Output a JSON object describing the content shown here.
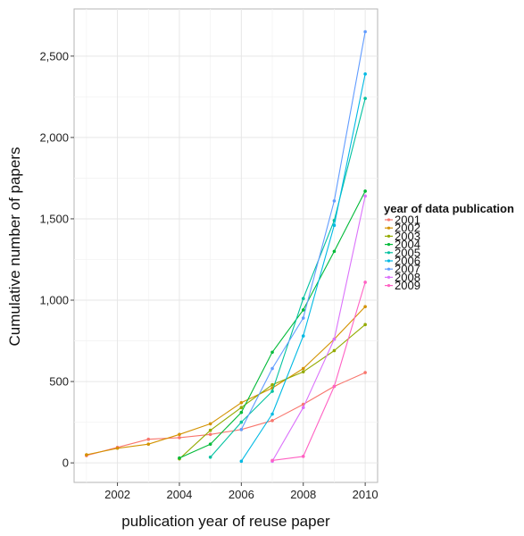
{
  "chart_data": {
    "type": "line",
    "xlabel": "publication year of reuse paper",
    "ylabel": "Cumulative number of papers",
    "xlim": [
      2000.6,
      2010.4
    ],
    "ylim": [
      -120,
      2790
    ],
    "x_ticks": [
      2002,
      2004,
      2006,
      2008,
      2010
    ],
    "x_tick_labels": [
      "2002",
      "2004",
      "2006",
      "2008",
      "2010"
    ],
    "y_ticks": [
      0,
      500,
      1000,
      1500,
      2000,
      2500
    ],
    "y_tick_labels": [
      "0",
      "500",
      "1,000",
      "1,500",
      "2,000",
      "2,500"
    ],
    "grid": true,
    "legend": {
      "title": "year of data publication",
      "placement": "right"
    },
    "series": [
      {
        "name": "2001",
        "color": "#F8766D",
        "x": [
          2001,
          2002,
          2003,
          2004,
          2005,
          2006,
          2007,
          2008,
          2009,
          2010
        ],
        "values": [
          45,
          95,
          145,
          155,
          175,
          205,
          260,
          360,
          470,
          555
        ]
      },
      {
        "name": "2002",
        "color": "#D39200",
        "x": [
          2001,
          2002,
          2003,
          2004,
          2005,
          2006,
          2007,
          2008,
          2009,
          2010
        ],
        "values": [
          50,
          90,
          115,
          175,
          240,
          370,
          460,
          580,
          760,
          960
        ]
      },
      {
        "name": "2003",
        "color": "#93AA00",
        "x": [
          2004,
          2005,
          2006,
          2007,
          2008,
          2009,
          2010
        ],
        "values": [
          25,
          200,
          340,
          480,
          560,
          690,
          850
        ]
      },
      {
        "name": "2004",
        "color": "#00BA38",
        "x": [
          2004,
          2005,
          2006,
          2007,
          2008,
          2009,
          2010
        ],
        "values": [
          30,
          115,
          310,
          680,
          940,
          1300,
          1670
        ]
      },
      {
        "name": "2005",
        "color": "#00C19F",
        "x": [
          2005,
          2006,
          2007,
          2008,
          2009,
          2010
        ],
        "values": [
          35,
          250,
          440,
          1010,
          1490,
          2240
        ]
      },
      {
        "name": "2006",
        "color": "#00B9E3",
        "x": [
          2006,
          2007,
          2008,
          2009,
          2010
        ],
        "values": [
          10,
          300,
          780,
          1460,
          2390
        ]
      },
      {
        "name": "2007",
        "color": "#619CFF",
        "x": [
          2006,
          2007,
          2008,
          2009,
          2010
        ],
        "values": [
          205,
          580,
          890,
          1610,
          2650
        ]
      },
      {
        "name": "2008",
        "color": "#DB72FB",
        "x": [
          2007,
          2008,
          2009,
          2010
        ],
        "values": [
          10,
          340,
          760,
          1640
        ]
      },
      {
        "name": "2009",
        "color": "#FF61C3",
        "x": [
          2007,
          2008,
          2009,
          2010
        ],
        "values": [
          15,
          40,
          470,
          1110
        ]
      }
    ]
  }
}
